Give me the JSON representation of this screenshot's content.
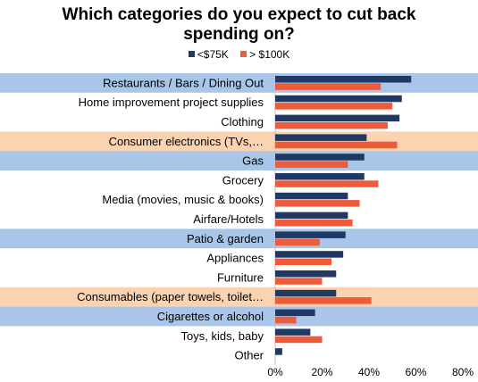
{
  "chart_data": {
    "type": "bar",
    "orientation": "horizontal",
    "title": "Which categories do you expect to cut back spending on?",
    "title_lines": [
      "Which categories do you expect to cut back",
      "spending on?"
    ],
    "categories": [
      "Restaurants / Bars / Dining Out",
      "Home improvement project supplies",
      "Clothing",
      "Consumer electronics (TVs,…",
      "Gas",
      "Grocery",
      "Media (movies, music & books)",
      "Airfare/Hotels",
      "Patio & garden",
      "Appliances",
      "Furniture",
      "Consumables (paper towels, toilet…",
      "Cigarettes or alcohol",
      "Toys, kids, baby",
      "Other"
    ],
    "series": [
      {
        "name": "<$75K",
        "color": "#1f3864",
        "values": [
          58,
          54,
          53,
          39,
          38,
          38,
          31,
          31,
          30,
          29,
          26,
          26,
          17,
          15,
          3
        ]
      },
      {
        "name": "> $100K",
        "color": "#ed5b3a",
        "values": [
          45,
          50,
          48,
          52,
          31,
          44,
          36,
          33,
          19,
          24,
          20,
          41,
          9,
          20,
          0
        ]
      }
    ],
    "x_ticks": [
      "0%",
      "20%",
      "40%",
      "60%",
      "80%"
    ],
    "xlim": [
      0,
      80
    ],
    "legend_position": "top",
    "row_highlights": [
      {
        "index": 0,
        "color": "#a9c5e8"
      },
      {
        "index": 3,
        "color": "#fbd3b0"
      },
      {
        "index": 4,
        "color": "#a9c5e8"
      },
      {
        "index": 8,
        "color": "#a9c5e8"
      },
      {
        "index": 11,
        "color": "#fbd3b0"
      },
      {
        "index": 12,
        "color": "#a9c5e8"
      }
    ],
    "grid": false
  }
}
